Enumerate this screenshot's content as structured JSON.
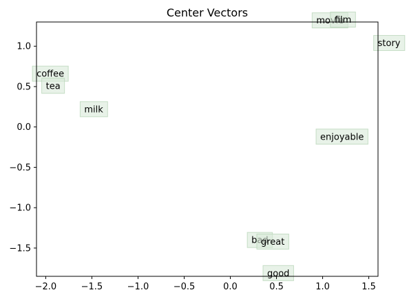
{
  "chart_data": {
    "type": "scatter",
    "title": "Center Vectors",
    "xlabel": "",
    "ylabel": "",
    "xlim": [
      -2.1,
      1.6
    ],
    "ylim": [
      -1.85,
      1.3
    ],
    "x_ticks": [
      -2.0,
      -1.5,
      -1.0,
      -0.5,
      0.0,
      0.5,
      1.0,
      1.5
    ],
    "x_tick_labels": [
      "−2.0",
      "−1.5",
      "−1.0",
      "−0.5",
      "0.0",
      "0.5",
      "1.0",
      "1.5"
    ],
    "y_ticks": [
      1.0,
      0.5,
      0.0,
      -0.5,
      -1.0,
      -1.5
    ],
    "y_tick_labels": [
      "1.0",
      "0.5",
      "0.0",
      "−0.5",
      "−1.0",
      "−1.5"
    ],
    "grid": false,
    "legend": "none",
    "label_box_color": "#d8ead8",
    "label_box_edge": "#b9d6b9",
    "points": [
      {
        "label": "movie",
        "x": 1.08,
        "y": 1.32
      },
      {
        "label": "film",
        "x": 1.22,
        "y": 1.33
      },
      {
        "label": "story",
        "x": 1.72,
        "y": 1.04
      },
      {
        "label": "coffee",
        "x": -1.95,
        "y": 0.66
      },
      {
        "label": "tea",
        "x": -1.92,
        "y": 0.51
      },
      {
        "label": "milk",
        "x": -1.48,
        "y": 0.22
      },
      {
        "label": "enjoyable",
        "x": 1.21,
        "y": -0.12
      },
      {
        "label": "bad",
        "x": 0.32,
        "y": -1.4
      },
      {
        "label": "great",
        "x": 0.46,
        "y": -1.42
      },
      {
        "label": "good",
        "x": 0.52,
        "y": -1.81
      }
    ]
  }
}
